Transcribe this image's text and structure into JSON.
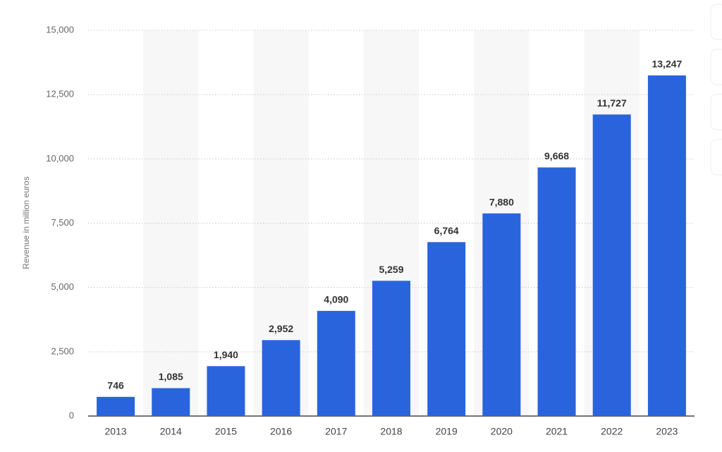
{
  "chart_data": {
    "type": "bar",
    "y_label": "Revenue in million euros",
    "categories": [
      "2013",
      "2014",
      "2015",
      "2016",
      "2017",
      "2018",
      "2019",
      "2020",
      "2021",
      "2022",
      "2023"
    ],
    "values": [
      746,
      1085,
      1940,
      2952,
      4090,
      5259,
      6764,
      7880,
      9668,
      11727,
      13247
    ],
    "value_labels": [
      "746",
      "1,085",
      "1,940",
      "2,952",
      "4,090",
      "5,259",
      "6,764",
      "7,880",
      "9,668",
      "11,727",
      "13,247"
    ],
    "color": "#2964dd",
    "ylim": [
      0,
      15000
    ],
    "yticks": [
      0,
      {
        "value": 2500,
        "label": "2,500"
      },
      {
        "value": 5000,
        "label": "5,000"
      },
      {
        "value": 7500,
        "label": "7,500"
      },
      {
        "value": 10000,
        "label": "10,000"
      },
      {
        "value": 12500,
        "label": "12,500"
      },
      {
        "value": 15000,
        "label": "15,000"
      }
    ],
    "grid": true
  }
}
